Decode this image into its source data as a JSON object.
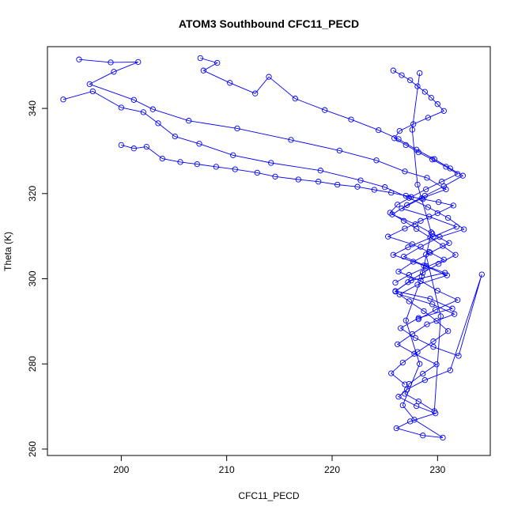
{
  "chart_data": {
    "type": "scatter",
    "title": "ATOM3 Southbound CFC11_PECD",
    "xlabel": "CFC11_PECD",
    "ylabel": "Theta (K)",
    "xlim": [
      193,
      235
    ],
    "ylim": [
      258.5,
      354.5
    ],
    "x_ticks": [
      200,
      210,
      220,
      230
    ],
    "y_ticks": [
      260,
      280,
      300,
      320,
      340
    ],
    "series_color": "#0000ff",
    "marker": "open-circle",
    "connected_lines": true,
    "grid": false,
    "legend": "none",
    "series": [
      {
        "x": [
          194.5,
          197.3,
          200.0,
          202.1,
          203.5,
          205.1,
          207.4,
          210.6,
          214.2,
          218.9,
          222.7,
          225.0,
          227.3,
          229.1,
          231.0,
          232.5,
          230.2,
          228.4,
          226.8,
          228.9,
          230.7,
          227.5,
          226.0,
          229.3,
          231.4,
          228.2,
          226.5,
          227.9,
          229.6,
          232.0,
          234.2,
          231.2,
          228.8,
          227.1,
          226.3,
          228.0,
          229.8,
          227.4,
          226.1,
          228.6,
          230.5,
          227.8,
          226.7,
          228.3,
          227.0,
          228.5,
          229.4,
          228.1,
          227.6,
          228.3
        ],
        "y": [
          342.1,
          344.0,
          340.2,
          339.1,
          336.5,
          333.4,
          331.7,
          329.0,
          327.2,
          325.4,
          323.1,
          321.5,
          319.0,
          316.8,
          314.3,
          311.6,
          309.8,
          307.5,
          305.2,
          303.0,
          301.4,
          299.6,
          297.1,
          295.3,
          293.0,
          290.8,
          288.4,
          286.1,
          284.0,
          281.9,
          301.0,
          278.5,
          276.2,
          274.0,
          272.3,
          270.1,
          268.4,
          266.5,
          264.9,
          263.2,
          262.7,
          266.9,
          270.3,
          280.0,
          290.2,
          300.5,
          310.9,
          322.1,
          335.0,
          348.3
        ]
      },
      {
        "x": [
          196.0,
          199.0,
          201.6,
          199.3,
          197.0,
          201.2,
          203.0,
          206.4,
          211.0,
          216.1,
          220.7,
          224.2,
          226.9,
          229.0,
          230.8,
          228.5,
          226.6,
          229.2,
          231.8,
          229.6,
          227.2,
          225.8,
          228.7,
          230.9,
          228.1,
          226.4,
          229.5,
          231.6,
          229.0,
          227.6,
          226.2,
          227.8,
          229.9,
          228.6,
          227.3,
          226.9,
          228.2,
          229.7,
          230.3,
          228.9
        ],
        "y": [
          351.5,
          350.8,
          350.9,
          348.6,
          345.7,
          342.0,
          339.8,
          337.1,
          335.3,
          332.6,
          330.1,
          327.8,
          325.2,
          323.7,
          321.0,
          318.9,
          316.5,
          314.6,
          312.2,
          309.9,
          307.4,
          305.6,
          303.1,
          300.8,
          298.6,
          296.3,
          294.0,
          291.7,
          289.3,
          287.0,
          284.6,
          282.4,
          279.9,
          277.7,
          275.3,
          273.0,
          271.2,
          268.9,
          291.2,
          305.7
        ]
      },
      {
        "x": [
          207.5,
          209.1,
          207.8,
          210.3,
          212.7,
          214.0,
          216.5,
          219.3,
          221.8,
          224.4,
          226.3,
          228.0,
          229.7,
          231.2,
          232.4,
          230.6,
          228.8,
          227.1,
          225.7,
          227.9,
          229.5,
          231.1,
          229.3,
          227.7,
          226.3,
          228.4,
          230.0,
          231.9,
          229.8,
          228.2
        ],
        "y": [
          351.8,
          350.7,
          348.9,
          346.0,
          343.5,
          347.4,
          342.3,
          339.6,
          337.4,
          334.9,
          332.8,
          330.3,
          328.1,
          325.9,
          324.2,
          321.7,
          319.5,
          317.3,
          315.1,
          312.8,
          310.6,
          308.4,
          306.1,
          304.0,
          301.7,
          299.5,
          297.2,
          295.0,
          292.7,
          290.5
        ]
      },
      {
        "x": [
          200.0,
          201.2,
          202.4,
          203.9,
          205.6,
          207.2,
          209.0,
          210.8,
          212.9,
          214.6,
          216.8,
          218.7,
          220.5,
          222.4,
          224.0,
          225.6,
          227.0,
          228.6,
          230.1,
          231.5,
          230.0,
          228.4,
          226.9,
          225.3,
          227.6,
          229.2,
          230.6,
          228.9,
          227.3,
          226.0
        ],
        "y": [
          331.4,
          330.6,
          331.0,
          328.2,
          327.4,
          326.9,
          326.3,
          325.7,
          324.9,
          324.0,
          323.3,
          322.8,
          322.1,
          321.6,
          320.9,
          320.2,
          319.5,
          318.7,
          318.0,
          317.2,
          315.4,
          313.6,
          311.8,
          309.9,
          308.1,
          306.3,
          304.5,
          302.7,
          300.9,
          299.1
        ]
      },
      {
        "x": [
          225.8,
          226.6,
          227.4,
          228.1,
          228.8,
          229.4,
          230.0,
          230.6,
          229.1,
          227.7,
          226.4,
          225.9,
          227.0,
          228.2,
          229.5,
          230.8,
          231.9,
          230.4,
          228.9,
          227.5,
          226.2,
          225.5,
          226.8,
          228.0,
          229.3,
          230.5,
          231.7,
          230.1,
          228.6,
          227.2,
          226.0,
          227.3,
          228.7,
          229.9,
          231.0,
          229.6,
          228.1,
          226.7,
          225.6,
          226.9
        ],
        "y": [
          348.9,
          347.8,
          346.6,
          345.2,
          343.9,
          342.5,
          341.0,
          339.4,
          337.8,
          336.3,
          334.7,
          333.0,
          331.4,
          329.7,
          328.0,
          326.3,
          324.6,
          322.8,
          321.0,
          319.2,
          317.4,
          315.5,
          313.6,
          311.7,
          309.7,
          307.7,
          305.6,
          303.5,
          301.4,
          299.2,
          297.0,
          294.7,
          292.4,
          290.1,
          287.7,
          285.3,
          282.8,
          280.3,
          277.8,
          275.2
        ]
      }
    ]
  }
}
